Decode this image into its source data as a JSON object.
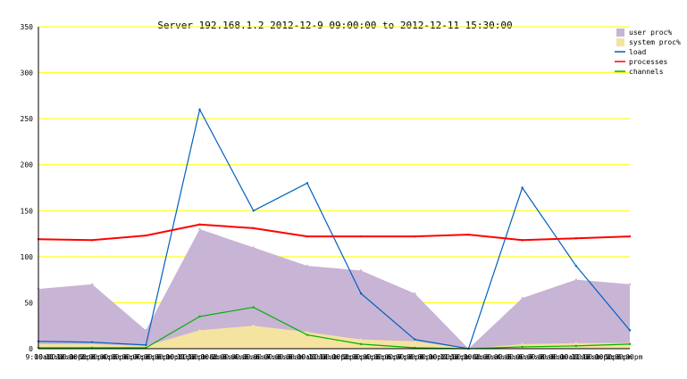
{
  "chart_data": {
    "type": "line",
    "title": "Server 192.168.1.2   2012-12-9 09:00:00 to 2012-12-11 15:30:00",
    "xlabel": "",
    "ylabel": "",
    "ylim": [
      0,
      350
    ],
    "yticks": [
      0,
      50,
      100,
      150,
      200,
      250,
      300,
      350
    ],
    "grid": true,
    "legend_position": "top-right",
    "colors": {
      "grid": "#ffff00",
      "axis": "#000000"
    },
    "x_ticks": [
      "9:00am",
      "10:00am",
      "11:00am",
      "12:00pm",
      "1:00pm",
      "2:00pm",
      "3:00pm",
      "4:00pm",
      "5:00pm",
      "6:00pm",
      "7:00pm",
      "8:00pm",
      "9:00pm",
      "10:00pm",
      "11:00pm",
      "12:00am",
      "1:00am",
      "2:00am",
      "3:00am",
      "4:00am",
      "5:00am",
      "6:00am",
      "7:00am",
      "8:00am",
      "9:00am",
      "10:00am",
      "11:00am",
      "12:00pm",
      "1:00pm",
      "2:00pm",
      "3:00pm",
      "4:00pm",
      "5:00pm",
      "6:00pm",
      "7:00pm",
      "8:00pm",
      "9:00pm",
      "10:00pm",
      "11:00pm",
      "12:00am",
      "1:00am",
      "2:00am",
      "3:00am",
      "4:00am",
      "5:00am",
      "6:00am",
      "7:00am",
      "8:00am",
      "9:00am",
      "10:00am",
      "11:00am",
      "12:00pm",
      "1:00pm",
      "2:00pm",
      "3:00pm"
    ],
    "x": [
      "12-09 09:00",
      "12-09 16:00",
      "12-10 08:00",
      "12-10 09:00",
      "12-10 10:00",
      "12-10 11:00",
      "12-10 12:00",
      "12-10 13:00",
      "12-10 15:00",
      "12-11 09:00",
      "12-11 12:00",
      "12-11 15:00"
    ],
    "series": [
      {
        "name": "user proc%",
        "color": "#c8b4d4",
        "style": "area",
        "values": [
          65,
          70,
          20,
          130,
          110,
          90,
          85,
          60,
          0,
          55,
          75,
          70
        ]
      },
      {
        "name": "system proc%",
        "color": "#f5e3a0",
        "style": "area",
        "values": [
          5,
          5,
          3,
          20,
          25,
          18,
          10,
          8,
          0,
          5,
          6,
          6
        ]
      },
      {
        "name": "load",
        "color": "#0060c0",
        "style": "line",
        "values": [
          8,
          7,
          4,
          260,
          150,
          180,
          60,
          10,
          0,
          175,
          90,
          20
        ]
      },
      {
        "name": "processes",
        "color": "#ff0000",
        "style": "line",
        "values": [
          119,
          118,
          123,
          135,
          131,
          122,
          122,
          122,
          124,
          118,
          120,
          122
        ]
      },
      {
        "name": "channels",
        "color": "#00b000",
        "style": "line",
        "values": [
          1,
          1,
          1,
          35,
          45,
          15,
          5,
          1,
          0,
          2,
          3,
          5
        ]
      }
    ]
  }
}
